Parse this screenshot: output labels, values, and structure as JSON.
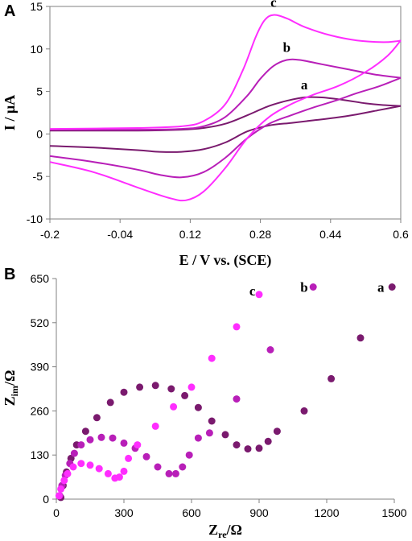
{
  "chart_data": [
    {
      "type": "line",
      "panel_label": "A",
      "xlabel": "E / V vs. (SCE)",
      "ylabel": "I / µA",
      "xlim": [
        -0.2,
        0.6
      ],
      "ylim": [
        -10,
        15
      ],
      "xticks": [
        "-0.2",
        "-0.04",
        "0.12",
        "0.28",
        "0.44",
        "0.6"
      ],
      "yticks": [
        "-10",
        "-5",
        "0",
        "5",
        "10",
        "15"
      ],
      "grid": false,
      "colors": {
        "a": "#7a1a6e",
        "b": "#b81fb8",
        "c": "#ff2dff"
      },
      "series": [
        {
          "name": "a",
          "forward": [
            [
              -0.2,
              0.4
            ],
            [
              0.0,
              0.4
            ],
            [
              0.1,
              0.5
            ],
            [
              0.15,
              0.7
            ],
            [
              0.2,
              1.2
            ],
            [
              0.25,
              2.2
            ],
            [
              0.3,
              3.3
            ],
            [
              0.34,
              3.9
            ],
            [
              0.38,
              4.3
            ],
            [
              0.42,
              4.3
            ],
            [
              0.47,
              4.0
            ],
            [
              0.52,
              3.6
            ],
            [
              0.56,
              3.4
            ],
            [
              0.6,
              3.3
            ]
          ],
          "reverse": [
            [
              0.6,
              3.3
            ],
            [
              0.55,
              2.8
            ],
            [
              0.5,
              2.3
            ],
            [
              0.45,
              1.9
            ],
            [
              0.4,
              1.6
            ],
            [
              0.35,
              1.3
            ],
            [
              0.3,
              1.0
            ],
            [
              0.25,
              0.3
            ],
            [
              0.2,
              -1.0
            ],
            [
              0.15,
              -1.8
            ],
            [
              0.1,
              -2.1
            ],
            [
              0.05,
              -2.1
            ],
            [
              0.0,
              -1.9
            ],
            [
              -0.1,
              -1.6
            ],
            [
              -0.2,
              -1.4
            ]
          ]
        },
        {
          "name": "b",
          "forward": [
            [
              -0.2,
              0.5
            ],
            [
              0.0,
              0.5
            ],
            [
              0.1,
              0.6
            ],
            [
              0.15,
              0.9
            ],
            [
              0.2,
              2.0
            ],
            [
              0.25,
              4.5
            ],
            [
              0.28,
              6.5
            ],
            [
              0.31,
              8.0
            ],
            [
              0.34,
              8.7
            ],
            [
              0.37,
              8.7
            ],
            [
              0.42,
              8.2
            ],
            [
              0.48,
              7.6
            ],
            [
              0.54,
              7.0
            ],
            [
              0.6,
              6.6
            ]
          ],
          "reverse": [
            [
              0.6,
              6.6
            ],
            [
              0.55,
              5.6
            ],
            [
              0.5,
              4.8
            ],
            [
              0.45,
              3.9
            ],
            [
              0.4,
              3.1
            ],
            [
              0.35,
              2.2
            ],
            [
              0.3,
              1.2
            ],
            [
              0.25,
              -0.5
            ],
            [
              0.2,
              -2.8
            ],
            [
              0.15,
              -4.5
            ],
            [
              0.1,
              -5.1
            ],
            [
              0.05,
              -4.8
            ],
            [
              0.0,
              -4.2
            ],
            [
              -0.1,
              -3.3
            ],
            [
              -0.2,
              -2.6
            ]
          ]
        },
        {
          "name": "c",
          "forward": [
            [
              -0.2,
              0.6
            ],
            [
              0.0,
              0.7
            ],
            [
              0.1,
              0.9
            ],
            [
              0.15,
              1.5
            ],
            [
              0.2,
              3.5
            ],
            [
              0.24,
              7.5
            ],
            [
              0.27,
              11.5
            ],
            [
              0.29,
              13.4
            ],
            [
              0.31,
              14.0
            ],
            [
              0.34,
              13.6
            ],
            [
              0.38,
              12.6
            ],
            [
              0.44,
              11.6
            ],
            [
              0.5,
              11.0
            ],
            [
              0.56,
              10.8
            ],
            [
              0.59,
              10.9
            ],
            [
              0.6,
              11.0
            ]
          ],
          "reverse": [
            [
              0.6,
              11.0
            ],
            [
              0.57,
              9.2
            ],
            [
              0.52,
              7.3
            ],
            [
              0.46,
              5.7
            ],
            [
              0.4,
              4.6
            ],
            [
              0.35,
              3.5
            ],
            [
              0.3,
              2.0
            ],
            [
              0.25,
              -0.5
            ],
            [
              0.2,
              -4.0
            ],
            [
              0.15,
              -6.8
            ],
            [
              0.11,
              -7.8
            ],
            [
              0.07,
              -7.5
            ],
            [
              0.0,
              -6.3
            ],
            [
              -0.1,
              -4.5
            ],
            [
              -0.2,
              -3.3
            ]
          ]
        }
      ]
    },
    {
      "type": "scatter",
      "panel_label": "B",
      "xlabel": "Zre/Ω",
      "ylabel": "Zim/Ω",
      "xlim": [
        0,
        1500
      ],
      "ylim": [
        0,
        650
      ],
      "xticks": [
        "0",
        "300",
        "600",
        "900",
        "1200",
        "1500"
      ],
      "yticks": [
        "0",
        "130",
        "260",
        "390",
        "520",
        "650"
      ],
      "grid": false,
      "colors": {
        "a": "#7a1a6e",
        "b": "#b81fb8",
        "c": "#ff2dff"
      },
      "series": [
        {
          "name": "a",
          "points": [
            [
              20,
              5
            ],
            [
              30,
              40
            ],
            [
              45,
              80
            ],
            [
              65,
              120
            ],
            [
              90,
              160
            ],
            [
              130,
              200
            ],
            [
              180,
              240
            ],
            [
              240,
              285
            ],
            [
              300,
              315
            ],
            [
              370,
              330
            ],
            [
              440,
              335
            ],
            [
              510,
              325
            ],
            [
              570,
              305
            ],
            [
              630,
              270
            ],
            [
              690,
              230
            ],
            [
              750,
              190
            ],
            [
              800,
              160
            ],
            [
              850,
              148
            ],
            [
              900,
              150
            ],
            [
              940,
              170
            ],
            [
              980,
              200
            ],
            [
              1100,
              260
            ],
            [
              1220,
              355
            ],
            [
              1350,
              475
            ],
            [
              1490,
              625
            ]
          ]
        },
        {
          "name": "b",
          "points": [
            [
              15,
              10
            ],
            [
              25,
              40
            ],
            [
              40,
              70
            ],
            [
              60,
              105
            ],
            [
              80,
              135
            ],
            [
              110,
              160
            ],
            [
              150,
              175
            ],
            [
              200,
              182
            ],
            [
              250,
              180
            ],
            [
              300,
              165
            ],
            [
              350,
              150
            ],
            [
              400,
              125
            ],
            [
              450,
              95
            ],
            [
              500,
              75
            ],
            [
              530,
              75
            ],
            [
              560,
              95
            ],
            [
              590,
              130
            ],
            [
              630,
              180
            ],
            [
              680,
              195
            ],
            [
              800,
              295
            ],
            [
              950,
              440
            ],
            [
              1140,
              625
            ]
          ]
        },
        {
          "name": "c",
          "points": [
            [
              12,
              10
            ],
            [
              20,
              30
            ],
            [
              35,
              55
            ],
            [
              50,
              75
            ],
            [
              75,
              95
            ],
            [
              110,
              105
            ],
            [
              150,
              100
            ],
            [
              190,
              90
            ],
            [
              230,
              75
            ],
            [
              260,
              62
            ],
            [
              280,
              65
            ],
            [
              300,
              82
            ],
            [
              320,
              120
            ],
            [
              360,
              160
            ],
            [
              440,
              215
            ],
            [
              520,
              272
            ],
            [
              600,
              330
            ],
            [
              690,
              415
            ],
            [
              800,
              508
            ],
            [
              900,
              603
            ]
          ]
        }
      ],
      "annotations": [
        {
          "text": "c",
          "x": 870,
          "y": 615
        },
        {
          "text": "b",
          "x": 1100,
          "y": 625
        },
        {
          "text": "a",
          "x": 1440,
          "y": 625
        }
      ]
    }
  ]
}
